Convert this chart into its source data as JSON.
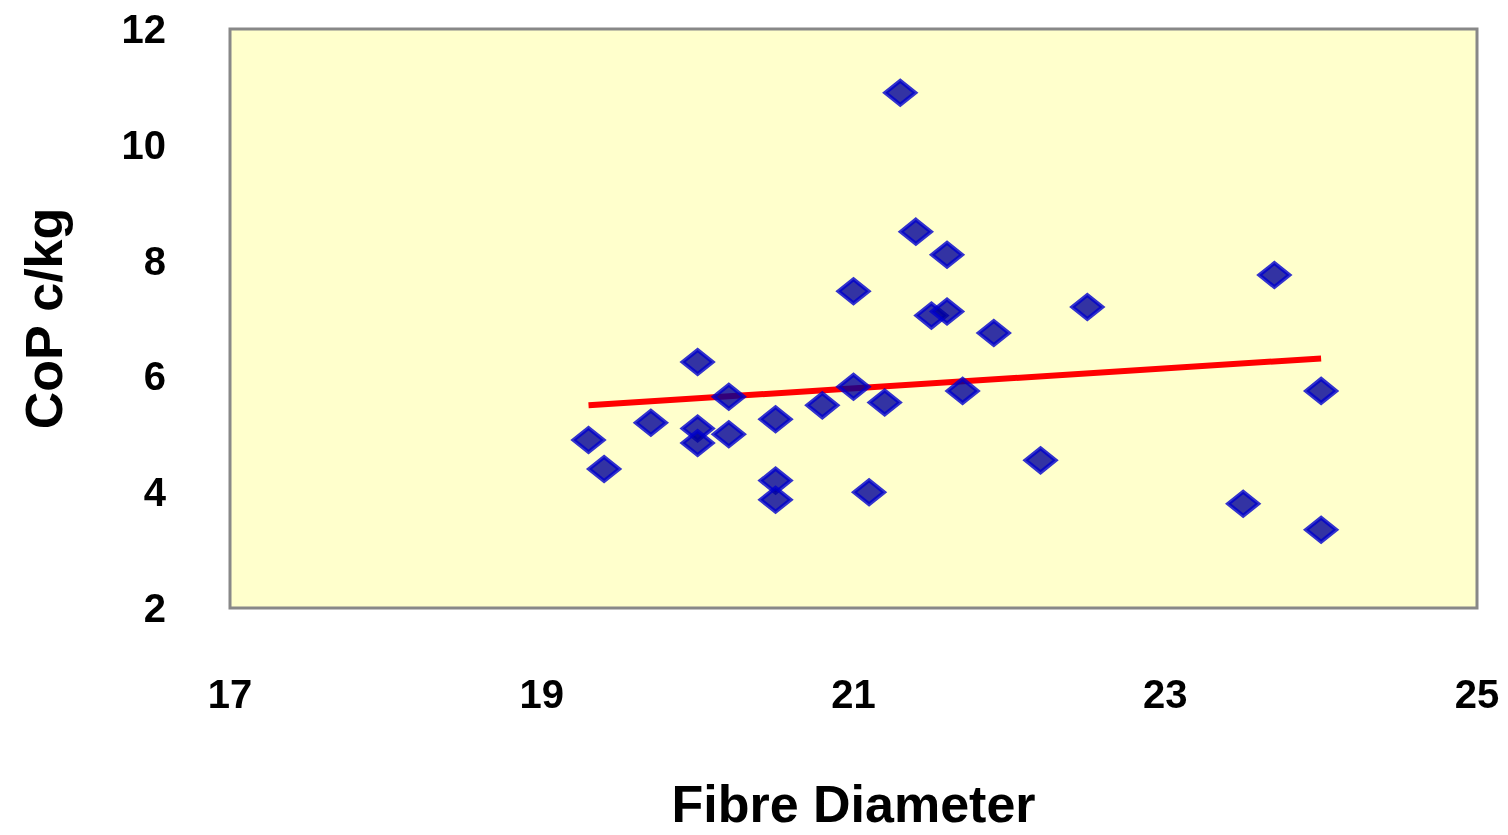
{
  "chart_data": {
    "type": "scatter",
    "xlabel": "Fibre Diameter",
    "ylabel": "CoP c/kg",
    "xlim": [
      17,
      25
    ],
    "xticks": [
      17,
      19,
      21,
      23,
      25
    ],
    "ylim": [
      2,
      12
    ],
    "yticks": [
      2,
      4,
      6,
      8,
      10,
      12
    ],
    "grid": false,
    "series": [
      {
        "marker": "diamond",
        "color": "#0000cc",
        "x": [
          19.3,
          19.4,
          19.7,
          20.0,
          20.0,
          20.0,
          20.2,
          20.2,
          20.5,
          20.5,
          20.5,
          20.8,
          21.0,
          21.0,
          21.1,
          21.2,
          21.3,
          21.4,
          21.6,
          21.5,
          21.6,
          21.7,
          21.9,
          22.2,
          22.5,
          23.5,
          23.7,
          24.0,
          24.0
        ],
        "values": [
          4.9,
          4.4,
          5.2,
          6.25,
          5.1,
          4.85,
          5.65,
          5.0,
          5.26,
          4.2,
          3.87,
          5.5,
          7.47,
          5.82,
          4.0,
          5.55,
          10.9,
          8.5,
          8.1,
          7.05,
          7.12,
          5.75,
          6.75,
          4.55,
          7.2,
          3.8,
          7.75,
          5.75,
          3.35
        ]
      },
      {
        "type": "line",
        "color": "#ff0000",
        "x": [
          19.3,
          24.0
        ],
        "values": [
          5.5,
          6.31
        ]
      }
    ]
  }
}
